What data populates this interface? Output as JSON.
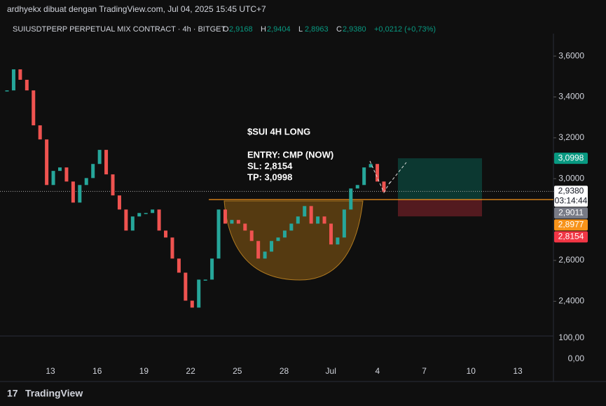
{
  "header": {
    "byline": "ardhyekx dibuat dengan TradingView.com, Jul 04, 2025 15:45 UTC+7",
    "symbol": "SUIUSDTPERP PERPETUAL MIX CONTRACT · 4h · BITGET",
    "ohlc": [
      {
        "k": "O",
        "v": "2,9168"
      },
      {
        "k": "H",
        "v": "2,9404"
      },
      {
        "k": "L",
        "v": "2,8963"
      },
      {
        "k": "C",
        "v": "2,9380"
      }
    ],
    "change": "+0,0212 (+0,73%)"
  },
  "chart_data": {
    "type": "candlestick",
    "values": [
      3.432,
      3.535,
      3.484,
      3.432,
      3.261,
      3.192,
      2.969,
      3.038,
      3.055,
      2.986,
      2.883,
      2.969,
      3.003,
      3.072,
      3.141,
      3.021,
      2.918,
      2.849,
      2.746,
      2.815,
      2.832,
      2.832,
      2.849,
      2.746,
      2.712,
      2.609,
      2.54,
      2.403,
      2.369,
      2.506,
      2.506,
      2.609,
      2.849,
      2.78,
      2.798,
      2.78,
      2.746,
      2.695,
      2.609,
      2.643,
      2.695,
      2.712,
      2.746,
      2.78,
      2.815,
      2.866,
      2.78,
      2.815,
      2.78,
      2.678,
      2.712,
      2.849,
      2.952,
      2.969,
      3.055,
      3.072,
      2.986,
      2.935
    ],
    "up_color": "#26a69a",
    "down_color": "#ef5350",
    "ylim": [
      2.23,
      3.71
    ],
    "yticks": [
      {
        "value": 2.4,
        "label": "2,4000"
      },
      {
        "value": 2.6,
        "label": "2,6000"
      },
      {
        "value": 3.0,
        "label": "3,0000"
      },
      {
        "value": 3.2,
        "label": "3,2000"
      },
      {
        "value": 3.4,
        "label": "3,4000"
      },
      {
        "value": 3.6,
        "label": "3,6000"
      }
    ],
    "xtick_labels": [
      "13",
      "16",
      "19",
      "22",
      "25",
      "28",
      "Jul",
      "4",
      "7",
      "10",
      "13"
    ],
    "volume_ticks": [
      "100,00",
      "0,00"
    ],
    "annotation": [
      "$SUI 4H LONG",
      "ENTRY: CMP (NOW)",
      "SL: 2,8154",
      "TP: 3,0998"
    ],
    "position": {
      "entry": 2.8977,
      "stop": 2.8154,
      "target": 3.0998
    },
    "last_price": 2.938,
    "countdown": "03:14:44",
    "price_labels": [
      {
        "value": 3.0998,
        "label": "3,0998",
        "color": "#089981"
      },
      {
        "value": 2.938,
        "label": "2,9380",
        "color": "#ffffff"
      },
      {
        "value": 2.9011,
        "label": "2,9011",
        "color": "#787b86"
      },
      {
        "value": 2.8977,
        "label": "2,8977",
        "color": "#f7931a"
      },
      {
        "value": 2.8154,
        "label": "2,8154",
        "color": "#f23645"
      }
    ]
  },
  "footer": "TradingView"
}
